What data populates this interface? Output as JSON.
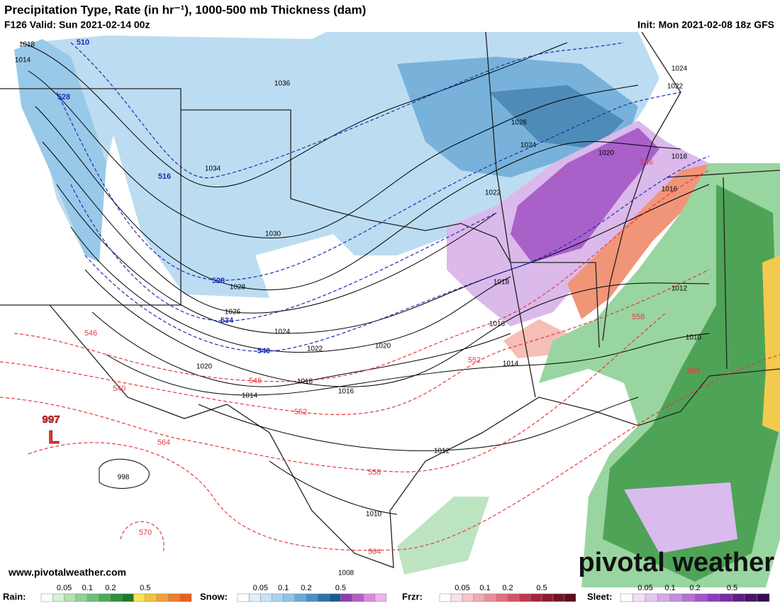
{
  "header": {
    "title": "Precipitation Type, Rate (in hr⁻¹), 1000-500 mb Thickness (dam)",
    "valid": "F126 Valid: Sun 2021-02-14 00z",
    "init": "Init: Mon 2021-02-08 18z GFS"
  },
  "map": {
    "isobar_labels": [
      "1018",
      "1014",
      "1036",
      "1034",
      "1030",
      "1028",
      "1026",
      "1024",
      "1022",
      "1020",
      "1020",
      "1018",
      "1016",
      "1014",
      "1012",
      "1010",
      "1008",
      "998",
      "1026",
      "1024",
      "1022",
      "1020",
      "1018",
      "1016",
      "1018",
      "1016",
      "1014",
      "1012",
      "1010",
      "1024",
      "1022"
    ],
    "cold_thickness_labels": [
      "510",
      "528",
      "516",
      "528",
      "534",
      "540"
    ],
    "warm_thickness_labels": [
      "546",
      "540",
      "546",
      "552",
      "552",
      "558",
      "558",
      "564",
      "564",
      "564",
      "570",
      "546"
    ],
    "low": {
      "pressure": "997",
      "symbol": "L"
    }
  },
  "credit": "www.pivotalweather.com",
  "logo": "pivotal weather",
  "legend": [
    {
      "name": "Rain:",
      "ticks": [
        "0.05",
        "0.1",
        "0.2",
        "0.5"
      ]
    },
    {
      "name": "Snow:",
      "ticks": [
        "0.05",
        "0.1",
        "0.2",
        "0.5"
      ]
    },
    {
      "name": "Frzr:",
      "ticks": [
        "0.05",
        "0.1",
        "0.2",
        "0.5"
      ]
    },
    {
      "name": "Sleet:",
      "ticks": [
        "0.05",
        "0.1",
        "0.2",
        "0.5"
      ]
    }
  ]
}
